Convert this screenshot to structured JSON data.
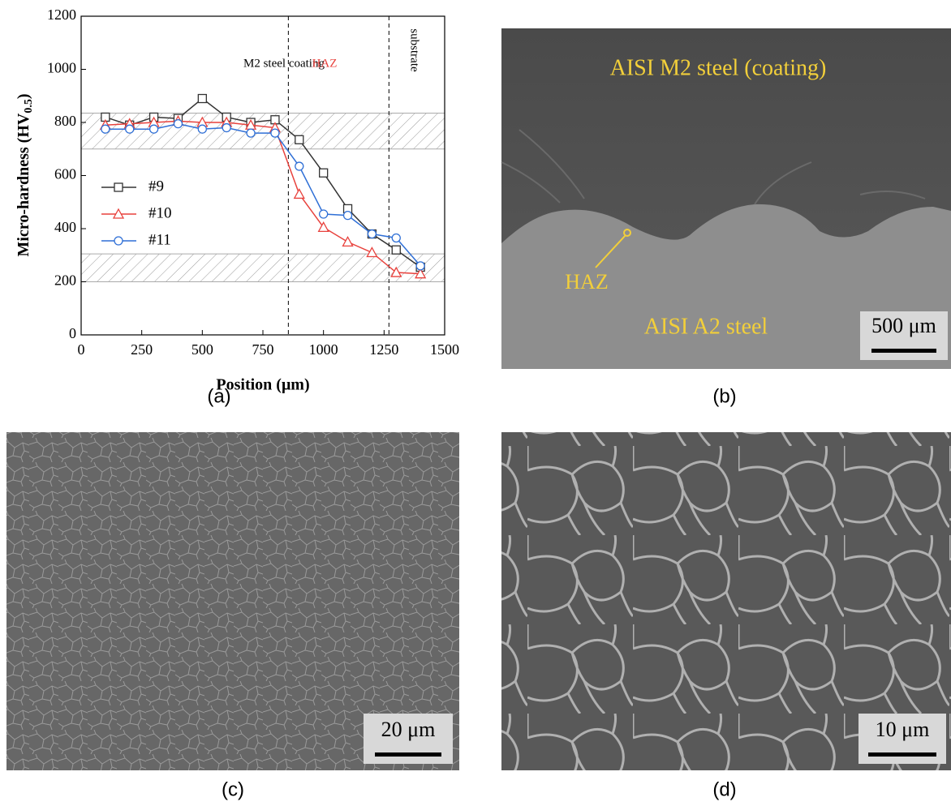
{
  "chart_data": {
    "type": "line",
    "xlabel": "Position (μm)",
    "ylabel": [
      "Micro-hardness (HV",
      "0.5",
      ")"
    ],
    "x": [
      100,
      200,
      300,
      400,
      500,
      600,
      700,
      800,
      900,
      1000,
      1100,
      1200,
      1300,
      1400
    ],
    "series": [
      {
        "name": "#9",
        "color": "#333333",
        "marker": "square",
        "values": [
          820,
          790,
          820,
          815,
          890,
          820,
          800,
          810,
          735,
          610,
          475,
          380,
          320,
          255
        ]
      },
      {
        "name": "#10",
        "color": "#e8413c",
        "marker": "triangle",
        "values": [
          790,
          795,
          800,
          805,
          800,
          800,
          790,
          780,
          530,
          405,
          350,
          310,
          235,
          230
        ]
      },
      {
        "name": "#11",
        "color": "#2f6fd6",
        "marker": "circle",
        "values": [
          775,
          775,
          775,
          795,
          775,
          780,
          760,
          760,
          635,
          455,
          450,
          380,
          365,
          260
        ]
      }
    ],
    "xlim": [
      0,
      1500
    ],
    "xticks": [
      0,
      250,
      500,
      750,
      1000,
      1250,
      1500
    ],
    "ylim": [
      0,
      1200
    ],
    "yticks": [
      0,
      200,
      400,
      600,
      800,
      1000,
      1200
    ],
    "hatch_bands": [
      [
        700,
        835
      ],
      [
        200,
        305
      ]
    ],
    "vlines": [
      855,
      1270
    ],
    "regions": [
      "M2 steel coating",
      "HAZ",
      "substrate"
    ],
    "legend": "left"
  },
  "panels": {
    "a": {
      "caption": "(a)"
    },
    "b": {
      "caption": "(b)",
      "top_label": "AISI M2 steel (coating)",
      "haz_label": "HAZ",
      "bottom_label": "AISI A2 steel",
      "scale": "500 μm"
    },
    "c": {
      "caption": "(c)",
      "scale": "20 μm"
    },
    "d": {
      "caption": "(d)",
      "scale": "10 μm"
    }
  }
}
